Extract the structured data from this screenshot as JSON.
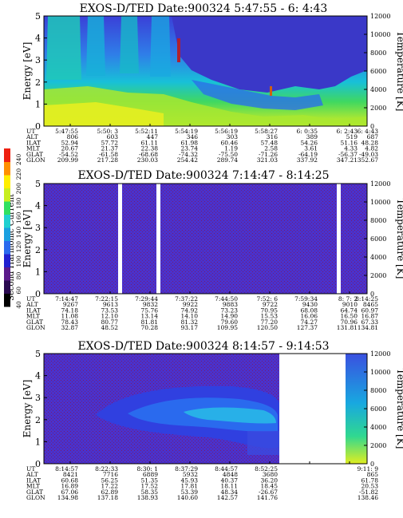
{
  "colorbar": {
    "label": "Second Harmonic Current",
    "ticks": [
      "40",
      "60",
      "80",
      "100",
      "120",
      "140",
      "160",
      "180",
      "200",
      "220",
      "240"
    ],
    "colors": [
      "#000000",
      "#2a0a50",
      "#5a1a8a",
      "#2020d0",
      "#2a6aee",
      "#1aa0e0",
      "#20d0d0",
      "#30e060",
      "#c8ee20",
      "#ffee00",
      "#ff9000",
      "#ee2010"
    ]
  },
  "chart_data": [
    {
      "type": "heatmap",
      "title": "EXOS-D/TED   Date:900324  5:47:55 - 6: 4:43",
      "ylabel": "Energy [eV]",
      "ylabel_right": "Temperature [K]",
      "ylim": [
        0,
        5
      ],
      "yticks": [
        "0",
        "1",
        "2",
        "3",
        "4",
        "5"
      ],
      "ylim_right": [
        0,
        12000
      ],
      "yticks_right": [
        "0",
        "2000",
        "4000",
        "6000",
        "8000",
        "10000",
        "12000"
      ],
      "row_labels": [
        "UT",
        "ALT",
        "ILAT",
        "MLT",
        "GLAT",
        "GLON"
      ],
      "columns": [
        [
          "5:47:55",
          "806",
          "52.94",
          "20.67",
          "-54.52",
          "209.99"
        ],
        [
          "5:50: 3",
          "603",
          "57.72",
          "21.37",
          "-61.58",
          "217.28"
        ],
        [
          "5:52:11",
          "447",
          "61.11",
          "22.38",
          "-68.68",
          "230.03"
        ],
        [
          "5:54:19",
          "346",
          "61.98",
          "23.74",
          "-74.32",
          "254.42"
        ],
        [
          "5:56:19",
          "303",
          "60.46",
          "1.19",
          "-75.50",
          "289.74"
        ],
        [
          "5:58:27",
          "316",
          "57.48",
          "2.58",
          "-71.26",
          "321.03"
        ],
        [
          "6: 0:35",
          "389",
          "54.26",
          "3.61",
          "-64.19",
          "337.92"
        ],
        [
          "6: 2:43",
          "519",
          "51.16",
          "4.33",
          "-56.37",
          "347.21"
        ],
        [
          "6: 4:43",
          "687",
          "48.28",
          "4.82",
          "-49.03",
          "352.67"
        ]
      ]
    },
    {
      "type": "heatmap",
      "title": "EXOS-D/TED   Date:900324  7:14:47 - 8:14:25",
      "ylabel": "Energy [eV]",
      "ylabel_right": "Temperature [K]",
      "ylim": [
        0,
        5
      ],
      "yticks": [
        "0",
        "1",
        "2",
        "3",
        "4",
        "5"
      ],
      "ylim_right": [
        0,
        12000
      ],
      "yticks_right": [
        "0",
        "2000",
        "4000",
        "6000",
        "8000",
        "10000",
        "12000"
      ],
      "row_labels": [
        "UT",
        "ALT",
        "ILAT",
        "MLT",
        "GLAT",
        "GLON"
      ],
      "columns": [
        [
          "7:14:47",
          "9267",
          "74.18",
          "11.08",
          "78.43",
          "32.87"
        ],
        [
          "7:22:15",
          "9613",
          "73.53",
          "12.10",
          "80.77",
          "48.52"
        ],
        [
          "7:29:44",
          "9832",
          "75.76",
          "13.14",
          "81.81",
          "70.28"
        ],
        [
          "7:37:22",
          "9922",
          "74.92",
          "14.10",
          "81.32",
          "93.17"
        ],
        [
          "7:44:50",
          "9883",
          "73.23",
          "14.90",
          "79.60",
          "109.95"
        ],
        [
          "7:52: 6",
          "9722",
          "70.95",
          "15.53",
          "77.20",
          "120.50"
        ],
        [
          "7:59:34",
          "9430",
          "68.08",
          "16.06",
          "74.27",
          "127.37"
        ],
        [
          "8: 7: 2",
          "9010",
          "64.74",
          "16.50",
          "70.96",
          "131.81"
        ],
        [
          "8:14:25",
          "8465",
          "60.97",
          "16.87",
          "67.33",
          "134.81"
        ]
      ]
    },
    {
      "type": "heatmap",
      "title": "EXOS-D/TED   Date:900324  8:14:57 - 9:14:53",
      "ylabel": "Energy [eV]",
      "ylabel_right": "Temperature [K]",
      "ylim": [
        0,
        5
      ],
      "yticks": [
        "0",
        "1",
        "2",
        "3",
        "4",
        "5"
      ],
      "ylim_right": [
        0,
        12000
      ],
      "yticks_right": [
        "0",
        "2000",
        "4000",
        "6000",
        "8000",
        "10000",
        "12000"
      ],
      "row_labels": [
        "UT",
        "ALT",
        "ILAT",
        "MLT",
        "GLAT",
        "GLON"
      ],
      "columns": [
        [
          "8:14:57",
          "8421",
          "60.68",
          "16.89",
          "67.06",
          "134.98"
        ],
        [
          "8:22:33",
          "7716",
          "56.25",
          "17.22",
          "62.89",
          "137.18"
        ],
        [
          "8:30: 1",
          "6889",
          "51.35",
          "17.52",
          "58.35",
          "138.93"
        ],
        [
          "8:37:29",
          "5932",
          "45.93",
          "17.81",
          "53.39",
          "140.60"
        ],
        [
          "8:44:57",
          "4848",
          "40.37",
          "18.11",
          "48.34",
          "142.57"
        ],
        [
          "8:52:25",
          "3680",
          "36.20",
          "18.45",
          "-26.67",
          "141.76"
        ],
        [
          "",
          "",
          "",
          "",
          "",
          ""
        ],
        [
          "",
          "",
          "",
          "",
          "",
          ""
        ],
        [
          "9:11: 9",
          "865",
          "61.78",
          "20.53",
          "-51.82",
          "138.46"
        ]
      ]
    }
  ]
}
